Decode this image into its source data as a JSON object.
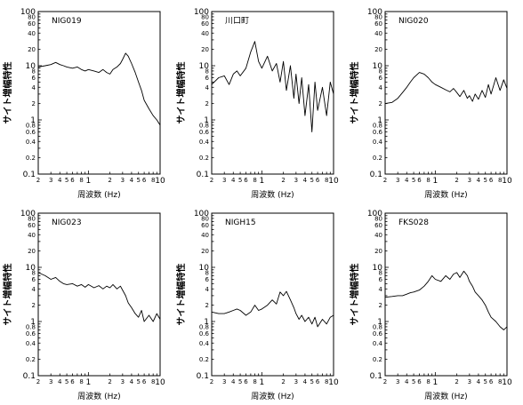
{
  "figure": {
    "y_axis_label": "サイト増幅特性",
    "x_axis_label": "周波数 (Hz)"
  },
  "chart_data": [
    {
      "type": "line",
      "title": "NIG019",
      "xscale": "log",
      "yscale": "log",
      "xlim": [
        0.2,
        10
      ],
      "ylim": [
        0.1,
        100
      ],
      "xlabel": "周波数 (Hz)",
      "ylabel": "サイト増幅特性",
      "x": [
        0.2,
        0.25,
        0.3,
        0.35,
        0.4,
        0.45,
        0.5,
        0.6,
        0.7,
        0.8,
        0.9,
        1.0,
        1.2,
        1.4,
        1.6,
        1.8,
        2.0,
        2.2,
        2.5,
        2.8,
        3.0,
        3.3,
        3.6,
        4.0,
        4.5,
        5.0,
        5.5,
        6.0,
        7.0,
        8.0,
        9.0,
        10.0
      ],
      "y": [
        9.5,
        10,
        10.5,
        11.5,
        10.5,
        10,
        9.5,
        9,
        9.5,
        8.5,
        8,
        8.5,
        8,
        7.5,
        8.5,
        7.5,
        7,
        8.5,
        9.5,
        11,
        13,
        17,
        15,
        11,
        7.5,
        5,
        3.5,
        2.3,
        1.6,
        1.2,
        1.0,
        0.8
      ]
    },
    {
      "type": "line",
      "title": "川口町",
      "xscale": "log",
      "yscale": "log",
      "xlim": [
        0.2,
        10
      ],
      "ylim": [
        0.1,
        100
      ],
      "xlabel": "周波数 (Hz)",
      "ylabel": "サイト増幅特性",
      "x": [
        0.2,
        0.25,
        0.3,
        0.35,
        0.4,
        0.45,
        0.5,
        0.6,
        0.7,
        0.8,
        0.9,
        1.0,
        1.2,
        1.4,
        1.6,
        1.8,
        2.0,
        2.2,
        2.5,
        2.8,
        3.0,
        3.3,
        3.6,
        4.0,
        4.5,
        5.0,
        5.5,
        6.0,
        7.0,
        8.0,
        9.0,
        10.0
      ],
      "y": [
        4.5,
        6,
        6.5,
        4.5,
        7,
        8,
        6.5,
        9,
        18,
        28,
        12,
        9,
        15,
        8,
        11,
        5,
        12,
        3.5,
        10,
        2.5,
        7,
        2,
        6,
        1.2,
        4.5,
        0.6,
        5,
        1.5,
        4,
        1.2,
        5,
        3
      ]
    },
    {
      "type": "line",
      "title": "NIG020",
      "xscale": "log",
      "yscale": "log",
      "xlim": [
        0.2,
        10
      ],
      "ylim": [
        0.1,
        100
      ],
      "xlabel": "周波数 (Hz)",
      "ylabel": "サイト増幅特性",
      "x": [
        0.2,
        0.25,
        0.3,
        0.35,
        0.4,
        0.45,
        0.5,
        0.6,
        0.7,
        0.8,
        0.9,
        1.0,
        1.2,
        1.4,
        1.6,
        1.8,
        2.0,
        2.2,
        2.5,
        2.8,
        3.0,
        3.3,
        3.6,
        4.0,
        4.5,
        5.0,
        5.5,
        6.0,
        7.0,
        8.0,
        9.0,
        10.0
      ],
      "y": [
        2,
        2.1,
        2.5,
        3.2,
        4,
        5,
        6,
        7.5,
        7,
        6,
        5,
        4.5,
        4,
        3.6,
        3.3,
        3.8,
        3.2,
        2.7,
        3.5,
        2.5,
        2.8,
        2.2,
        3,
        2.4,
        3.5,
        2.6,
        4.5,
        3,
        6,
        3.5,
        5.5,
        3.8
      ]
    },
    {
      "type": "line",
      "title": "NIG023",
      "xscale": "log",
      "yscale": "log",
      "xlim": [
        0.2,
        10
      ],
      "ylim": [
        0.1,
        100
      ],
      "xlabel": "周波数 (Hz)",
      "ylabel": "サイト増幅特性",
      "x": [
        0.2,
        0.25,
        0.3,
        0.35,
        0.4,
        0.45,
        0.5,
        0.6,
        0.7,
        0.8,
        0.9,
        1.0,
        1.2,
        1.4,
        1.6,
        1.8,
        2.0,
        2.2,
        2.5,
        2.8,
        3.0,
        3.3,
        3.6,
        4.0,
        4.5,
        5.0,
        5.5,
        6.0,
        7.0,
        8.0,
        9.0,
        10.0
      ],
      "y": [
        8,
        7,
        6,
        6.5,
        5.5,
        5,
        4.8,
        5,
        4.5,
        4.8,
        4.3,
        4.8,
        4.2,
        4.6,
        4,
        4.5,
        4.2,
        4.8,
        4,
        4.5,
        3.8,
        3,
        2.2,
        1.8,
        1.4,
        1.2,
        1.6,
        1.0,
        1.3,
        1.0,
        1.4,
        1.1
      ]
    },
    {
      "type": "line",
      "title": "NIGH15",
      "xscale": "log",
      "yscale": "log",
      "xlim": [
        0.2,
        10
      ],
      "ylim": [
        0.1,
        100
      ],
      "xlabel": "周波数 (Hz)",
      "ylabel": "サイト増幅特性",
      "x": [
        0.2,
        0.25,
        0.3,
        0.35,
        0.4,
        0.45,
        0.5,
        0.6,
        0.7,
        0.8,
        0.9,
        1.0,
        1.2,
        1.4,
        1.6,
        1.8,
        2.0,
        2.2,
        2.5,
        2.8,
        3.0,
        3.3,
        3.6,
        4.0,
        4.5,
        5.0,
        5.5,
        6.0,
        7.0,
        8.0,
        9.0,
        10.0
      ],
      "y": [
        1.5,
        1.4,
        1.4,
        1.5,
        1.6,
        1.7,
        1.6,
        1.3,
        1.5,
        2,
        1.6,
        1.7,
        2,
        2.5,
        2.1,
        3.5,
        3,
        3.6,
        2.5,
        1.8,
        1.4,
        1.1,
        1.3,
        1.0,
        1.2,
        0.9,
        1.2,
        0.8,
        1.1,
        0.9,
        1.2,
        1.3
      ]
    },
    {
      "type": "line",
      "title": "FKS028",
      "xscale": "log",
      "yscale": "log",
      "xlim": [
        0.2,
        10
      ],
      "ylim": [
        0.1,
        100
      ],
      "xlabel": "周波数 (Hz)",
      "ylabel": "サイト増幅特性",
      "x": [
        0.2,
        0.25,
        0.3,
        0.35,
        0.4,
        0.45,
        0.5,
        0.6,
        0.7,
        0.8,
        0.9,
        1.0,
        1.2,
        1.4,
        1.6,
        1.8,
        2.0,
        2.2,
        2.5,
        2.8,
        3.0,
        3.3,
        3.6,
        4.0,
        4.5,
        5.0,
        5.5,
        6.0,
        7.0,
        8.0,
        9.0,
        10.0
      ],
      "y": [
        2.8,
        2.9,
        3,
        3,
        3.2,
        3.4,
        3.5,
        3.8,
        4.5,
        5.5,
        7,
        6,
        5.5,
        7,
        6,
        7.5,
        8,
        6.5,
        8.5,
        7,
        5.5,
        4.5,
        3.5,
        3,
        2.5,
        2,
        1.5,
        1.2,
        1.0,
        0.8,
        0.7,
        0.8
      ]
    }
  ]
}
